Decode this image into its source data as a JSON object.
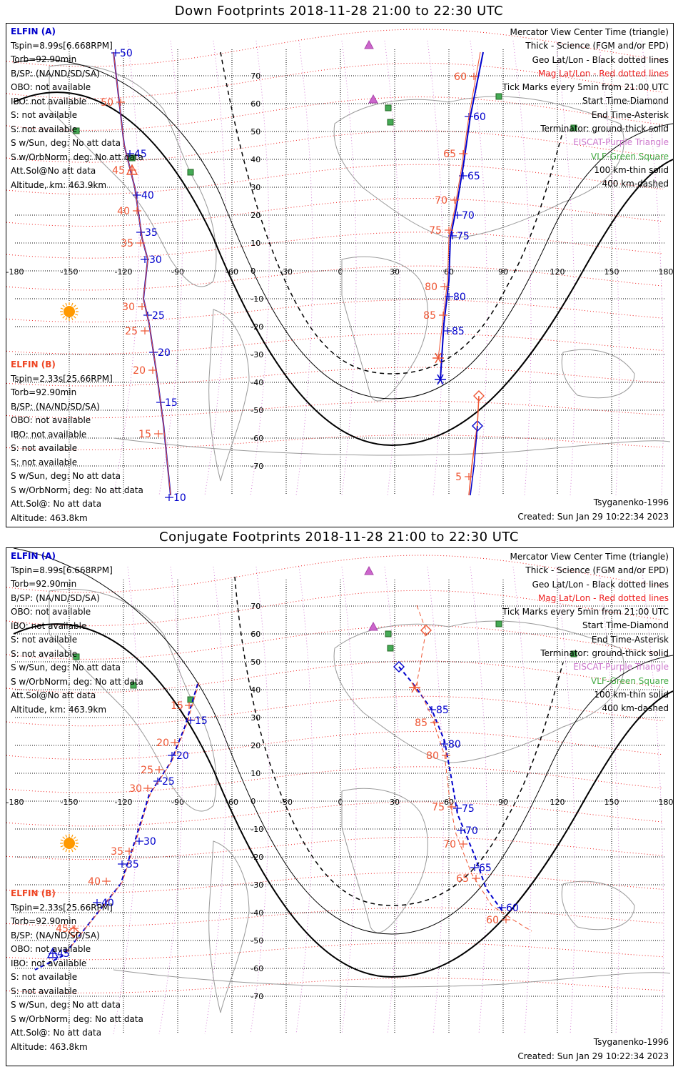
{
  "panels": [
    {
      "title": "Down Footprints 2018-11-28 21:00 to 22:30 UTC",
      "elfin_a": {
        "header": "ELFIN (A)",
        "lines": [
          "Tspin=8.99s[6.668RPM]",
          "Torb=92.90min",
          "B/SP: (NA/ND/SD/SA)",
          "OBO: not available",
          "IBO: not available",
          "S: not available",
          "S: not available",
          "S w/Sun, deg: No att data",
          "S w/OrbNorm, deg: No att data",
          "Att.Sol@No att data",
          "Altitude, km: 463.9km"
        ]
      },
      "elfin_b": {
        "header": "ELFIN (B)",
        "lines": [
          "Tspin=2.33s[25.66RPM]",
          "Torb=92.90min",
          "B/SP: (NA/ND/SD/SA)",
          "OBO: not available",
          "IBO: not available",
          "S: not available",
          "S: not available",
          "S w/Sun, deg: No att data",
          "S w/OrbNorm, deg: No att data",
          "Att.Sol@: No att data",
          "Altitude: 463.8km"
        ]
      }
    },
    {
      "title": "Conjugate Footprints 2018-11-28 21:00 to 22:30 UTC",
      "elfin_a": {
        "header": "ELFIN (A)",
        "lines": [
          "Tspin=8.99s[6.668RPM]",
          "Torb=92.90min",
          "B/SP: (NA/ND/SD/SA)",
          "OBO: not available",
          "IBO: not available",
          "S: not available",
          "S: not available",
          "S w/Sun, deg: No att data",
          "S w/OrbNorm, deg: No att data",
          "Att.Sol@No att data",
          "Altitude, km: 463.9km"
        ]
      },
      "elfin_b": {
        "header": "ELFIN (B)",
        "lines": [
          "Tspin=2.33s[25.66RPM]",
          "Torb=92.90min",
          "B/SP: (NA/ND/SD/SA)",
          "OBO: not available",
          "IBO: not available",
          "S: not available",
          "S: not available",
          "S w/Sun, deg: No att data",
          "S w/OrbNorm, deg: No att data",
          "Att.Sol@: No att data",
          "Altitude: 463.8km"
        ]
      }
    }
  ],
  "legend": [
    {
      "text": "Mercator View Center Time (triangle)",
      "color": "#000000"
    },
    {
      "text": "Thick - Science (FGM and/or EPD)",
      "color": "#000000"
    },
    {
      "text": "Geo Lat/Lon - Black dotted lines",
      "color": "#000000"
    },
    {
      "text": "Mag Lat/Lon - Red dotted lines",
      "color": "#ee2222"
    },
    {
      "text": "Tick Marks every 5min from 21:00 UTC",
      "color": "#000000"
    },
    {
      "text": "Start Time-Diamond",
      "color": "#000000"
    },
    {
      "text": "End Time-Asterisk",
      "color": "#000000"
    },
    {
      "text": "Terminator: ground-thick solid",
      "color": "#000000"
    },
    {
      "text": "EISCAT-Purple Triangle",
      "color": "#cc77cc"
    },
    {
      "text": "VLF-Green Square",
      "color": "#44aa44"
    },
    {
      "text": "100 km-thin solid",
      "color": "#000000"
    },
    {
      "text": "400 km-dashed",
      "color": "#000000"
    }
  ],
  "footer": {
    "model": "Tsyganenko-1996",
    "created": "Created: Sun Jan 29 10:22:34 2023"
  },
  "map": {
    "lon_labels": [
      "-180",
      "-150",
      "-120",
      "-90",
      "-60",
      "-30",
      "0",
      "30",
      "60",
      "90",
      "120",
      "150",
      "180"
    ],
    "lat_labels": [
      "70",
      "60",
      "50",
      "40",
      "30",
      "20",
      "10",
      "0",
      "-10",
      "-20",
      "-30",
      "-40",
      "-50",
      "-60",
      "-70"
    ],
    "colors": {
      "elfin_a": "#0000cc",
      "elfin_b": "#ee5533",
      "mag_grid": "#ee2222",
      "geo_grid": "#000000",
      "eiscat": "#cc66cc",
      "vlf": "#44aa55",
      "sun": "#ff9900"
    }
  },
  "tracks": {
    "down": {
      "a_west_ticks": [
        "50",
        "45",
        "40",
        "35",
        "30",
        "25",
        "20",
        "15",
        "10"
      ],
      "b_west_ticks": [
        "50",
        "45",
        "40",
        "35",
        "30",
        "25",
        "20",
        "15"
      ],
      "a_east_ticks": [
        "60",
        "65",
        "70",
        "75",
        "80",
        "85"
      ],
      "b_east_ticks": [
        "60",
        "65",
        "70",
        "75",
        "80",
        "85",
        "5"
      ]
    },
    "conj": {
      "a_west_ticks": [
        "15",
        "20",
        "25",
        "30",
        "35",
        "40",
        "45"
      ],
      "b_west_ticks": [
        "15",
        "20",
        "25",
        "30",
        "35",
        "40",
        "45"
      ],
      "a_east_ticks": [
        "85",
        "80",
        "75",
        "70",
        "65",
        "60"
      ],
      "b_east_ticks": [
        "85",
        "80",
        "75",
        "70",
        "65",
        "60"
      ]
    }
  }
}
